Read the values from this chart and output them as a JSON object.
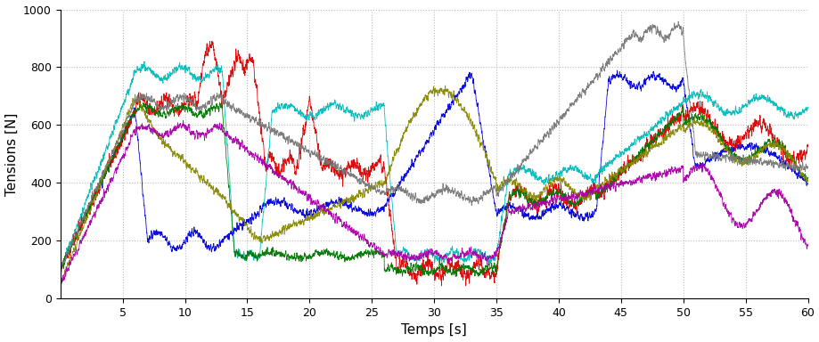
{
  "title": "",
  "xlabel": "Temps [s]",
  "ylabel": "Tensions [N]",
  "xlim": [
    0,
    60
  ],
  "ylim": [
    0,
    1000
  ],
  "xticks": [
    5,
    10,
    15,
    20,
    25,
    30,
    35,
    40,
    45,
    50,
    55,
    60
  ],
  "yticks": [
    0,
    200,
    400,
    600,
    800,
    1000
  ],
  "grid": true,
  "colors": {
    "blue": "#0000dd",
    "red": "#dd0000",
    "cyan": "#00bbbb",
    "dgreen": "#007700",
    "olive": "#888800",
    "gray": "#777777",
    "purple": "#aa00aa",
    "teal2": "#009999"
  },
  "noise_scale": 15,
  "n_points": 6000,
  "t_start": 0,
  "t_end": 60,
  "background_color": "#ffffff",
  "linewidth": 0.6
}
